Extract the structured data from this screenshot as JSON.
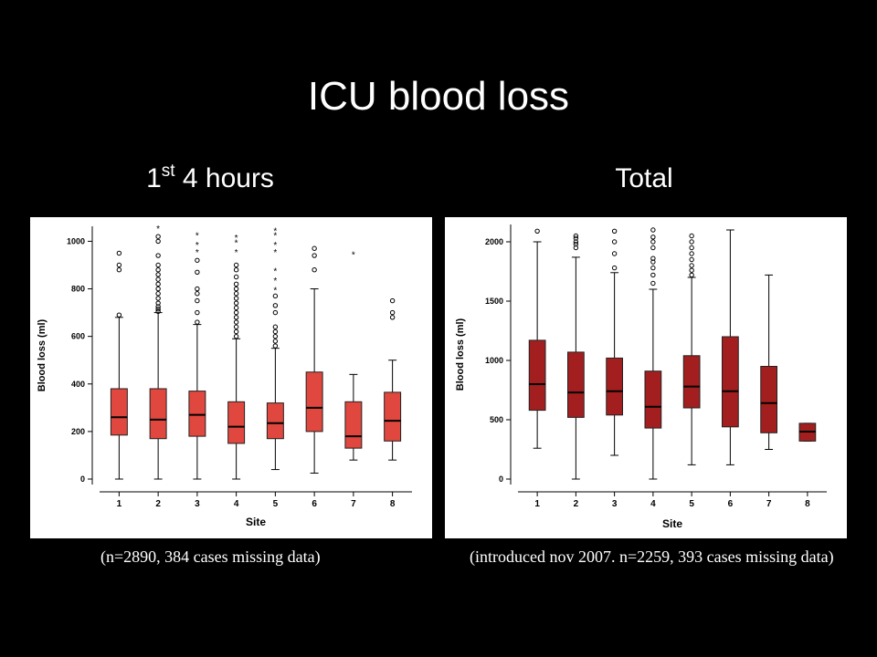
{
  "slide": {
    "title": "ICU blood loss",
    "left_subtitle_main": "1",
    "left_subtitle_sup": "st",
    "left_subtitle_rest": " 4 hours",
    "right_subtitle": "Total",
    "left_caption": "(n=2890, 384 cases missing data)",
    "right_caption": "(introduced nov 2007. n=2259, 393 cases missing data)"
  },
  "chart_data": [
    {
      "type": "boxplot",
      "xlabel": "Site",
      "ylabel": "Blood loss (ml)",
      "ylim": [
        0,
        1040
      ],
      "yticks": [
        0,
        200,
        400,
        600,
        800,
        1000
      ],
      "categories": [
        "1",
        "2",
        "3",
        "4",
        "5",
        "6",
        "7",
        "8"
      ],
      "box_color": "#e0473e",
      "boxes": [
        {
          "site": "1",
          "whisker_low": 0,
          "q1": 185,
          "median": 260,
          "q3": 380,
          "whisker_high": 680,
          "outliers": [
            690,
            880,
            900,
            950
          ],
          "extremes": []
        },
        {
          "site": "2",
          "whisker_low": 0,
          "q1": 170,
          "median": 250,
          "q3": 380,
          "whisker_high": 700,
          "outliers": [
            705,
            715,
            725,
            740,
            760,
            780,
            800,
            820,
            840,
            860,
            880,
            900,
            940,
            1000,
            1020
          ],
          "extremes": [
            1060
          ]
        },
        {
          "site": "3",
          "whisker_low": 0,
          "q1": 180,
          "median": 270,
          "q3": 370,
          "whisker_high": 650,
          "outliers": [
            660,
            700,
            750,
            780,
            800,
            870,
            920
          ],
          "extremes": [
            960,
            990,
            1030
          ]
        },
        {
          "site": "4",
          "whisker_low": 0,
          "q1": 150,
          "median": 220,
          "q3": 325,
          "whisker_high": 590,
          "outliers": [
            600,
            620,
            640,
            660,
            680,
            700,
            720,
            740,
            760,
            780,
            800,
            820,
            850,
            880,
            900
          ],
          "extremes": [
            960,
            1000,
            1020
          ]
        },
        {
          "site": "5",
          "whisker_low": 40,
          "q1": 170,
          "median": 235,
          "q3": 320,
          "whisker_high": 550,
          "outliers": [
            560,
            580,
            600,
            620,
            640,
            700,
            730,
            770
          ],
          "extremes": [
            800,
            840,
            880,
            960,
            990,
            1030,
            1050
          ]
        },
        {
          "site": "6",
          "whisker_low": 25,
          "q1": 200,
          "median": 300,
          "q3": 450,
          "whisker_high": 800,
          "outliers": [
            880,
            940,
            970
          ],
          "extremes": []
        },
        {
          "site": "7",
          "whisker_low": 80,
          "q1": 130,
          "median": 180,
          "q3": 325,
          "whisker_high": 440,
          "outliers": [],
          "extremes": [
            950
          ]
        },
        {
          "site": "8",
          "whisker_low": 80,
          "q1": 160,
          "median": 245,
          "q3": 365,
          "whisker_high": 500,
          "outliers": [
            680,
            700,
            750
          ],
          "extremes": []
        }
      ]
    },
    {
      "type": "boxplot",
      "xlabel": "Site",
      "ylabel": "Blood loss (ml)",
      "ylim": [
        0,
        2100
      ],
      "yticks": [
        0,
        500,
        1000,
        1500,
        2000
      ],
      "categories": [
        "1",
        "2",
        "3",
        "4",
        "5",
        "6",
        "7",
        "8"
      ],
      "box_color": "#a31f1f",
      "boxes": [
        {
          "site": "1",
          "whisker_low": 260,
          "q1": 580,
          "median": 800,
          "q3": 1170,
          "whisker_high": 2000,
          "outliers": [
            2090
          ],
          "extremes": []
        },
        {
          "site": "2",
          "whisker_low": 0,
          "q1": 520,
          "median": 730,
          "q3": 1070,
          "whisker_high": 1870,
          "outliers": [
            1950,
            1980,
            2000,
            2030,
            2050
          ],
          "extremes": []
        },
        {
          "site": "3",
          "whisker_low": 200,
          "q1": 540,
          "median": 740,
          "q3": 1020,
          "whisker_high": 1740,
          "outliers": [
            1780,
            1900,
            2000,
            2090
          ],
          "extremes": []
        },
        {
          "site": "4",
          "whisker_low": 0,
          "q1": 430,
          "median": 610,
          "q3": 910,
          "whisker_high": 1600,
          "outliers": [
            1650,
            1720,
            1780,
            1830,
            1860,
            1950,
            2000,
            2040,
            2100
          ],
          "extremes": []
        },
        {
          "site": "5",
          "whisker_low": 120,
          "q1": 600,
          "median": 780,
          "q3": 1040,
          "whisker_high": 1700,
          "outliers": [
            1720,
            1760,
            1800,
            1850,
            1900,
            1950,
            2000,
            2050
          ],
          "extremes": []
        },
        {
          "site": "6",
          "whisker_low": 120,
          "q1": 440,
          "median": 740,
          "q3": 1200,
          "whisker_high": 2100,
          "outliers": [],
          "extremes": []
        },
        {
          "site": "7",
          "whisker_low": 250,
          "q1": 390,
          "median": 640,
          "q3": 950,
          "whisker_high": 1720,
          "outliers": [],
          "extremes": []
        },
        {
          "site": "8",
          "whisker_low": 320,
          "q1": 320,
          "median": 400,
          "q3": 470,
          "whisker_high": 470,
          "outliers": [],
          "extremes": []
        }
      ]
    }
  ]
}
